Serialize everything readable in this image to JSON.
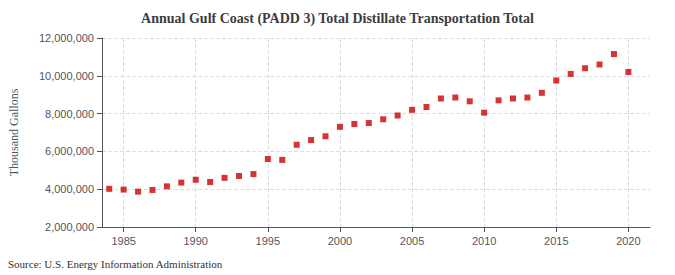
{
  "chart_data": {
    "type": "scatter",
    "title": "Annual Gulf Coast (PADD 3) Total Distillate Transportation Total",
    "ylabel": "Thousand Gallons",
    "source": "Source: U.S. Energy Information Administration",
    "color": "#cc0000",
    "marker": "square",
    "grid": true,
    "xlim": [
      1983.5,
      2021.5
    ],
    "ylim": [
      2000000,
      12000000
    ],
    "xticks": [
      1985,
      1990,
      1995,
      2000,
      2005,
      2010,
      2015,
      2020
    ],
    "yticks": [
      {
        "value": 2000000,
        "label": "2,000,000"
      },
      {
        "value": 4000000,
        "label": "4,000,000"
      },
      {
        "value": 6000000,
        "label": "6,000,000"
      },
      {
        "value": 8000000,
        "label": "8,000,000"
      },
      {
        "value": 10000000,
        "label": "10,000,000"
      },
      {
        "value": 12000000,
        "label": "12,000,000"
      }
    ],
    "x": [
      1984,
      1985,
      1986,
      1987,
      1988,
      1989,
      1990,
      1991,
      1992,
      1993,
      1994,
      1995,
      1996,
      1997,
      1998,
      1999,
      2000,
      2001,
      2002,
      2003,
      2004,
      2005,
      2006,
      2007,
      2008,
      2009,
      2010,
      2011,
      2012,
      2013,
      2014,
      2015,
      2016,
      2017,
      2018,
      2019,
      2020
    ],
    "values": [
      4020000,
      3980000,
      3870000,
      3960000,
      4150000,
      4350000,
      4500000,
      4380000,
      4600000,
      4700000,
      4800000,
      5600000,
      5550000,
      6350000,
      6600000,
      6800000,
      7300000,
      7450000,
      7500000,
      7700000,
      7900000,
      8200000,
      8350000,
      8800000,
      8850000,
      8650000,
      8050000,
      8700000,
      8800000,
      8850000,
      9100000,
      9750000,
      10100000,
      10400000,
      10600000,
      11150000,
      10200000
    ]
  }
}
